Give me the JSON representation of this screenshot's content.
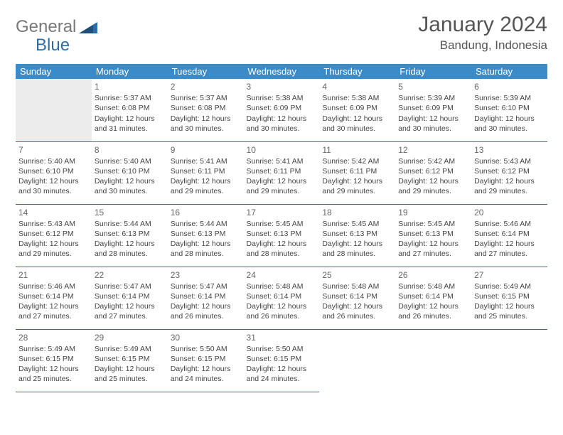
{
  "brand": {
    "part1": "General",
    "part2": "Blue"
  },
  "title": "January 2024",
  "location": "Bandung, Indonesia",
  "colors": {
    "header_bg": "#3b8bc8",
    "header_text": "#ffffff",
    "border": "#2e6ca4",
    "logo_gray": "#787878",
    "logo_blue": "#2e6ca4",
    "lead_blank": "#ececec"
  },
  "weekdays": [
    "Sunday",
    "Monday",
    "Tuesday",
    "Wednesday",
    "Thursday",
    "Friday",
    "Saturday"
  ],
  "first_weekday_index": 1,
  "days": [
    {
      "n": 1,
      "sunrise": "5:37 AM",
      "sunset": "6:08 PM",
      "daylight": "12 hours and 31 minutes."
    },
    {
      "n": 2,
      "sunrise": "5:37 AM",
      "sunset": "6:08 PM",
      "daylight": "12 hours and 30 minutes."
    },
    {
      "n": 3,
      "sunrise": "5:38 AM",
      "sunset": "6:09 PM",
      "daylight": "12 hours and 30 minutes."
    },
    {
      "n": 4,
      "sunrise": "5:38 AM",
      "sunset": "6:09 PM",
      "daylight": "12 hours and 30 minutes."
    },
    {
      "n": 5,
      "sunrise": "5:39 AM",
      "sunset": "6:09 PM",
      "daylight": "12 hours and 30 minutes."
    },
    {
      "n": 6,
      "sunrise": "5:39 AM",
      "sunset": "6:10 PM",
      "daylight": "12 hours and 30 minutes."
    },
    {
      "n": 7,
      "sunrise": "5:40 AM",
      "sunset": "6:10 PM",
      "daylight": "12 hours and 30 minutes."
    },
    {
      "n": 8,
      "sunrise": "5:40 AM",
      "sunset": "6:10 PM",
      "daylight": "12 hours and 30 minutes."
    },
    {
      "n": 9,
      "sunrise": "5:41 AM",
      "sunset": "6:11 PM",
      "daylight": "12 hours and 29 minutes."
    },
    {
      "n": 10,
      "sunrise": "5:41 AM",
      "sunset": "6:11 PM",
      "daylight": "12 hours and 29 minutes."
    },
    {
      "n": 11,
      "sunrise": "5:42 AM",
      "sunset": "6:11 PM",
      "daylight": "12 hours and 29 minutes."
    },
    {
      "n": 12,
      "sunrise": "5:42 AM",
      "sunset": "6:12 PM",
      "daylight": "12 hours and 29 minutes."
    },
    {
      "n": 13,
      "sunrise": "5:43 AM",
      "sunset": "6:12 PM",
      "daylight": "12 hours and 29 minutes."
    },
    {
      "n": 14,
      "sunrise": "5:43 AM",
      "sunset": "6:12 PM",
      "daylight": "12 hours and 29 minutes."
    },
    {
      "n": 15,
      "sunrise": "5:44 AM",
      "sunset": "6:13 PM",
      "daylight": "12 hours and 28 minutes."
    },
    {
      "n": 16,
      "sunrise": "5:44 AM",
      "sunset": "6:13 PM",
      "daylight": "12 hours and 28 minutes."
    },
    {
      "n": 17,
      "sunrise": "5:45 AM",
      "sunset": "6:13 PM",
      "daylight": "12 hours and 28 minutes."
    },
    {
      "n": 18,
      "sunrise": "5:45 AM",
      "sunset": "6:13 PM",
      "daylight": "12 hours and 28 minutes."
    },
    {
      "n": 19,
      "sunrise": "5:45 AM",
      "sunset": "6:13 PM",
      "daylight": "12 hours and 27 minutes."
    },
    {
      "n": 20,
      "sunrise": "5:46 AM",
      "sunset": "6:14 PM",
      "daylight": "12 hours and 27 minutes."
    },
    {
      "n": 21,
      "sunrise": "5:46 AM",
      "sunset": "6:14 PM",
      "daylight": "12 hours and 27 minutes."
    },
    {
      "n": 22,
      "sunrise": "5:47 AM",
      "sunset": "6:14 PM",
      "daylight": "12 hours and 27 minutes."
    },
    {
      "n": 23,
      "sunrise": "5:47 AM",
      "sunset": "6:14 PM",
      "daylight": "12 hours and 26 minutes."
    },
    {
      "n": 24,
      "sunrise": "5:48 AM",
      "sunset": "6:14 PM",
      "daylight": "12 hours and 26 minutes."
    },
    {
      "n": 25,
      "sunrise": "5:48 AM",
      "sunset": "6:14 PM",
      "daylight": "12 hours and 26 minutes."
    },
    {
      "n": 26,
      "sunrise": "5:48 AM",
      "sunset": "6:14 PM",
      "daylight": "12 hours and 26 minutes."
    },
    {
      "n": 27,
      "sunrise": "5:49 AM",
      "sunset": "6:15 PM",
      "daylight": "12 hours and 25 minutes."
    },
    {
      "n": 28,
      "sunrise": "5:49 AM",
      "sunset": "6:15 PM",
      "daylight": "12 hours and 25 minutes."
    },
    {
      "n": 29,
      "sunrise": "5:49 AM",
      "sunset": "6:15 PM",
      "daylight": "12 hours and 25 minutes."
    },
    {
      "n": 30,
      "sunrise": "5:50 AM",
      "sunset": "6:15 PM",
      "daylight": "12 hours and 24 minutes."
    },
    {
      "n": 31,
      "sunrise": "5:50 AM",
      "sunset": "6:15 PM",
      "daylight": "12 hours and 24 minutes."
    }
  ],
  "labels": {
    "sunrise": "Sunrise:",
    "sunset": "Sunset:",
    "daylight": "Daylight:"
  }
}
